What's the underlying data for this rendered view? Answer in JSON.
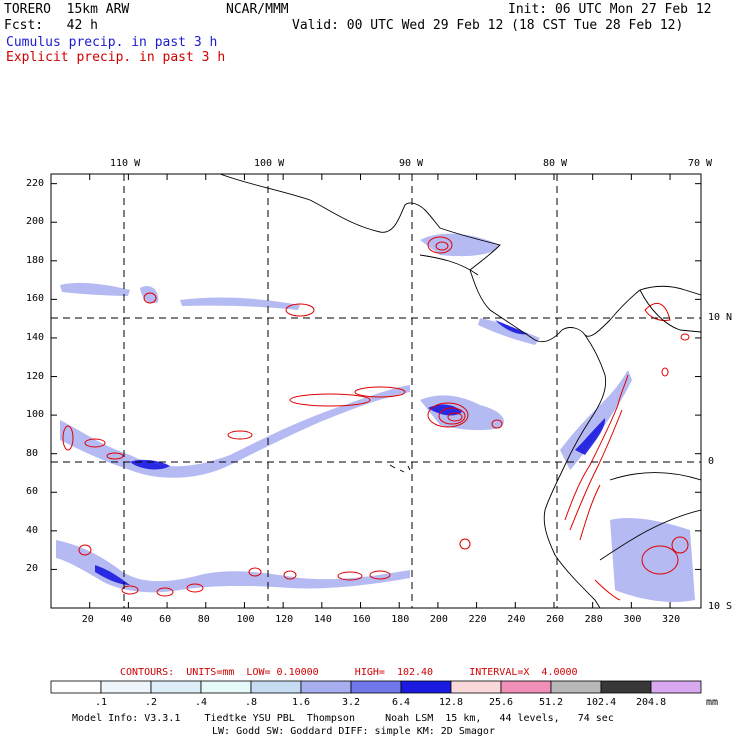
{
  "header": {
    "model": "TORERO  15km ARW",
    "org": "NCAR/MMM",
    "init": "Init: 06 UTC Mon 27 Feb 12",
    "fcst": "Fcst:   42 h",
    "valid": "Valid: 00 UTC Wed 29 Feb 12 (18 CST Tue 28 Feb 12)",
    "field1": "Cumulus precip. in past 3 h",
    "field2": "Explicit precip. in past 3 h",
    "field1_color": "#1c1cd0",
    "field2_color": "#d00000"
  },
  "map": {
    "lon_labels": [
      "110 W",
      "100 W",
      "90 W",
      "80 W",
      "70 W"
    ],
    "lat_labels_right": [
      "10 N",
      "0",
      "10 S"
    ],
    "x_ticks": [
      "20",
      "40",
      "60",
      "80",
      "100",
      "120",
      "140",
      "160",
      "180",
      "200",
      "220",
      "240",
      "260",
      "280",
      "300",
      "320"
    ],
    "y_ticks": [
      "20",
      "40",
      "60",
      "80",
      "100",
      "120",
      "140",
      "160",
      "180",
      "200",
      "220"
    ]
  },
  "contours_text": "CONTOURS:  UNITS=mm  LOW= 0.10000      HIGH=  102.40      INTERVAL=X  4.0000",
  "colorbar": {
    "labels": [
      ".1",
      ".2",
      ".4",
      ".8",
      "1.6",
      "3.2",
      "6.4",
      "12.8",
      "25.6",
      "51.2",
      "102.4",
      "204.8"
    ],
    "unit": "mm",
    "colors": [
      "#ffffff",
      "#eef6fb",
      "#ddeef8",
      "#e6fafa",
      "#c6dcf2",
      "#a8aff0",
      "#7077e8",
      "#1a1ae0",
      "#f8d8d8",
      "#f090b8",
      "#b8b8b8",
      "#383838",
      "#d8a8f0"
    ]
  },
  "footer": {
    "line1": "Model Info: V3.3.1    Tiedtke YSU PBL  Thompson     Noah LSM  15 km,   44 levels,   74 sec",
    "line2": "LW: Godd SW: Goddard DIFF: simple KM: 2D Smagor"
  }
}
